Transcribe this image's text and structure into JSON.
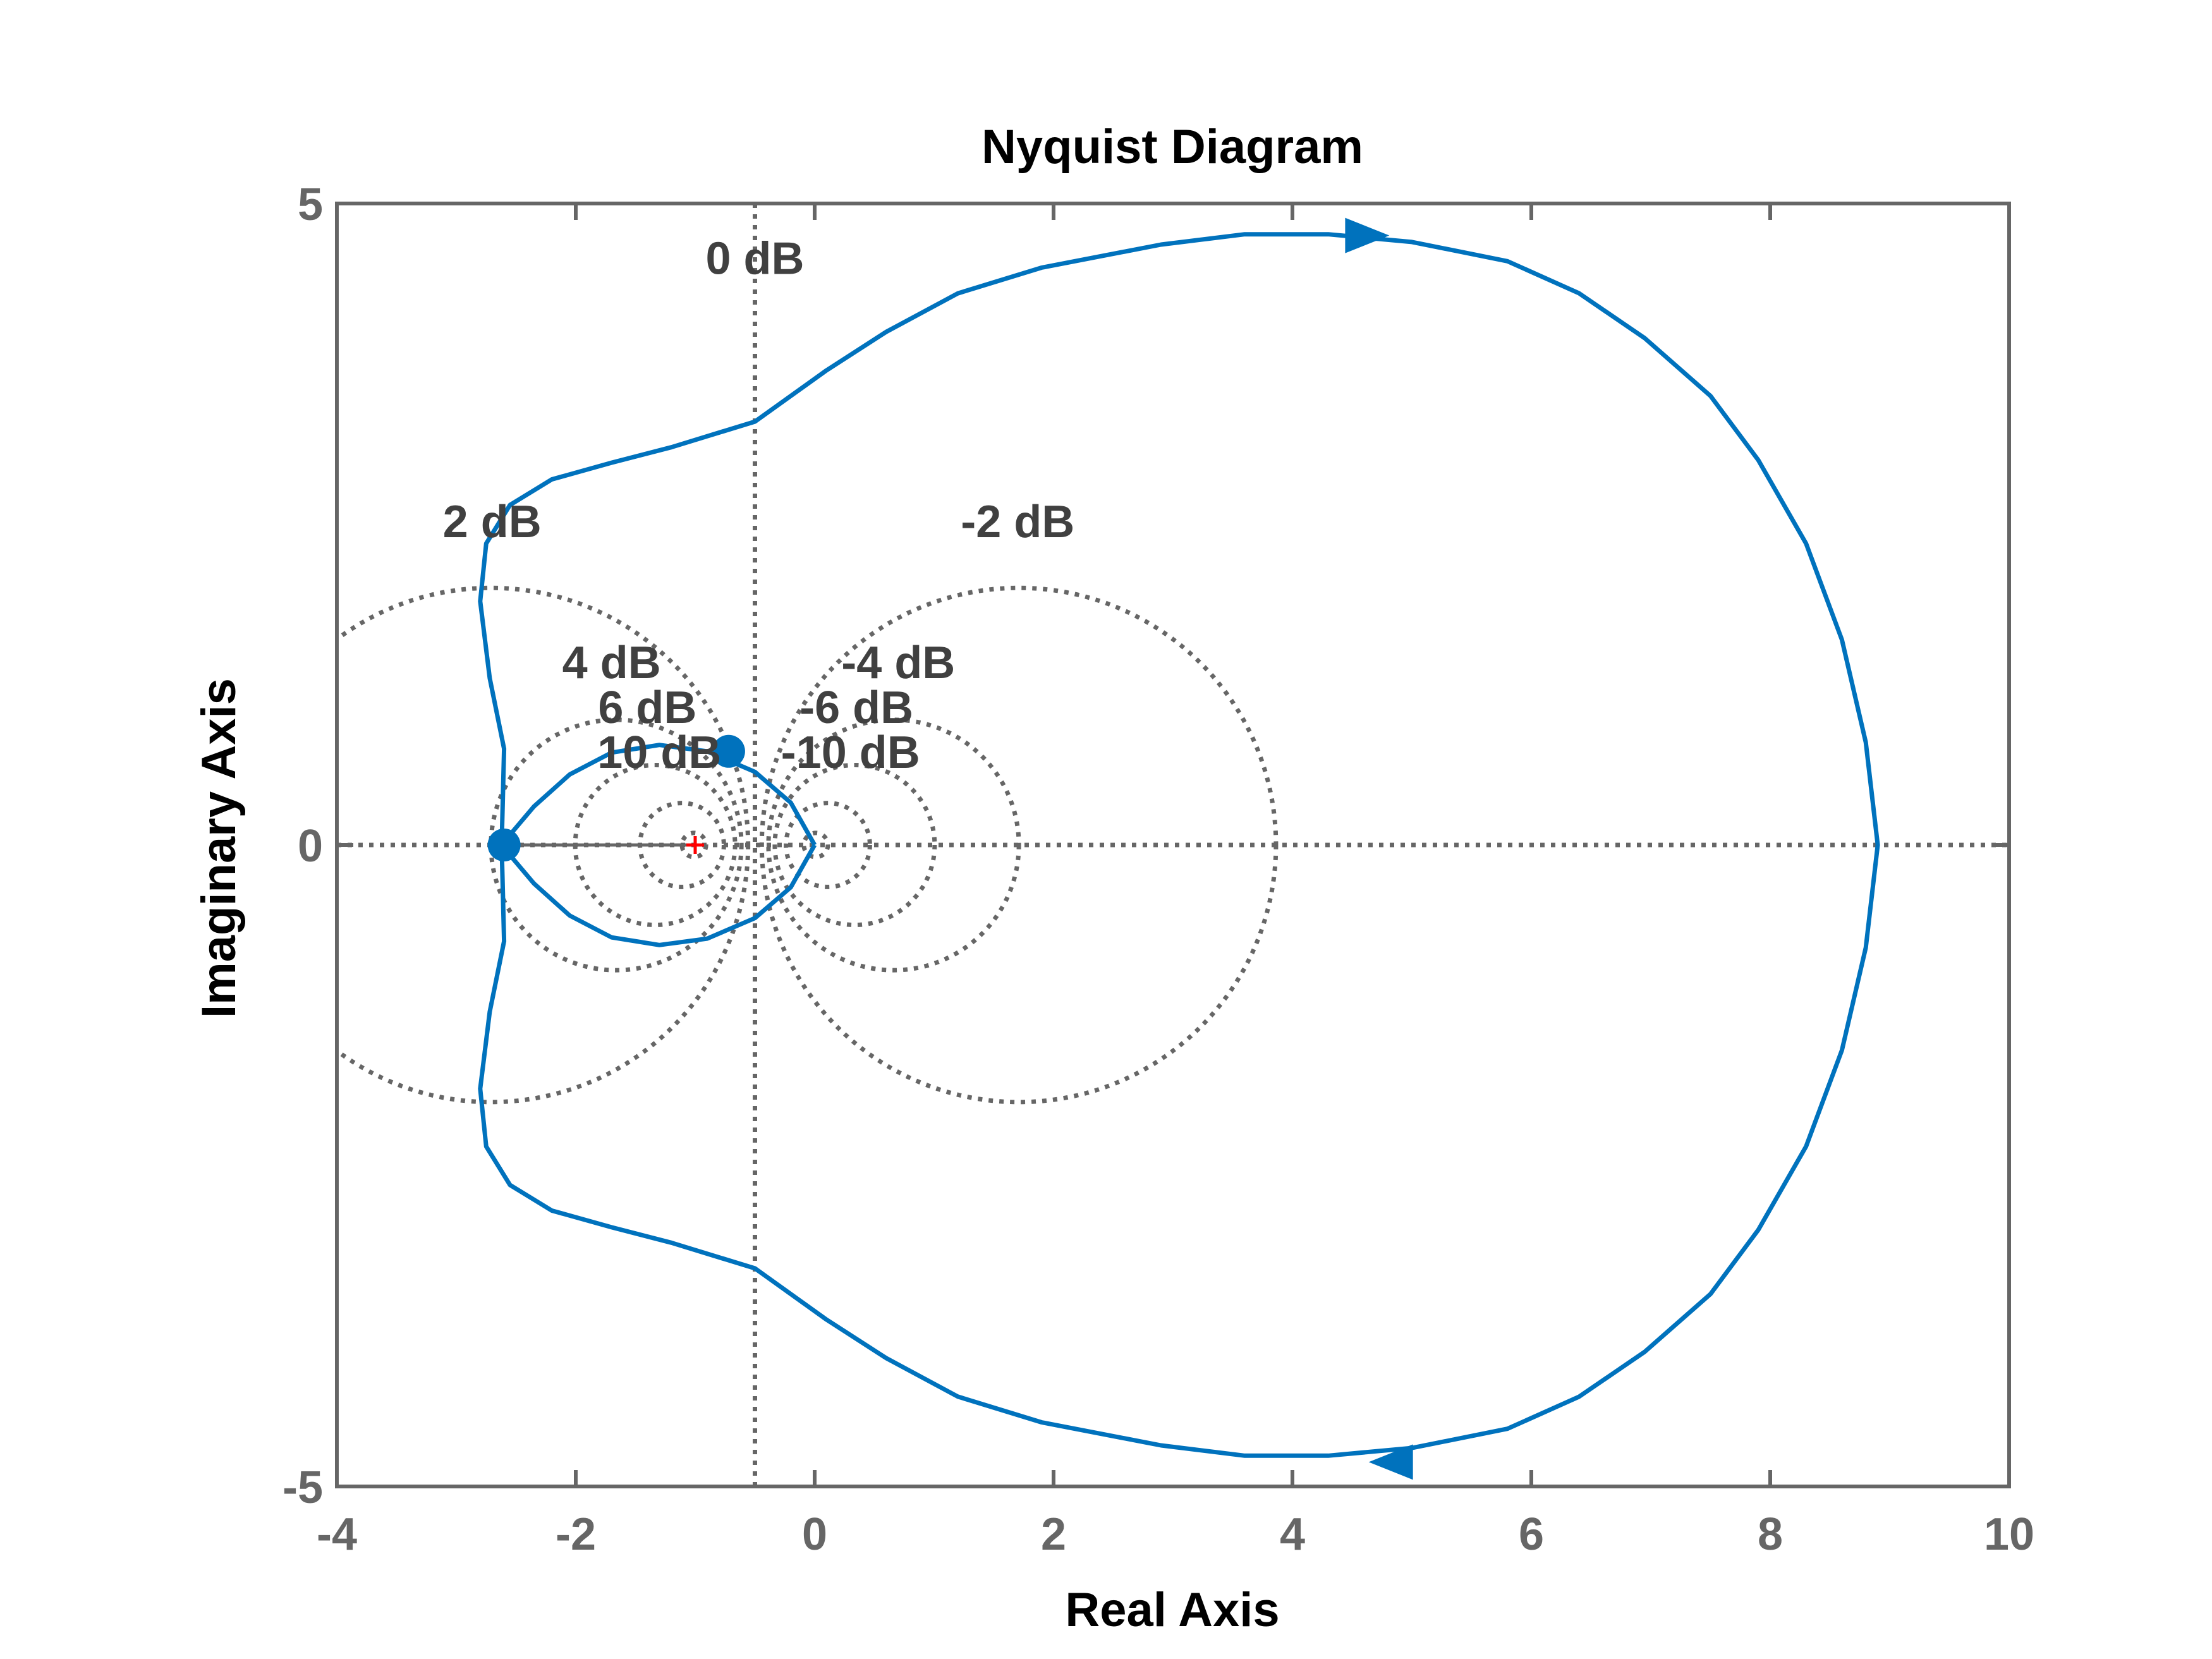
{
  "colors": {
    "curve": "#0072BD",
    "axes": "#666666",
    "grid": "#666666",
    "critical_point": "#FF0000",
    "grid_label": "#404040"
  },
  "chart_data": {
    "type": "line",
    "title": "Nyquist Diagram",
    "xlabel": "Real Axis",
    "ylabel": "Imaginary Axis",
    "xlim": [
      -4,
      10
    ],
    "ylim": [
      -5,
      5
    ],
    "xticks": [
      -4,
      -2,
      0,
      2,
      4,
      6,
      8,
      10
    ],
    "yticks": [
      -5,
      0,
      5
    ],
    "grid": "M-circles",
    "grid_labels": [
      {
        "text": "0 dB",
        "x": -0.5,
        "y": 4.45
      },
      {
        "text": "2 dB",
        "x": -2.7,
        "y": 2.4
      },
      {
        "text": "-2 dB",
        "x": 1.7,
        "y": 2.4
      },
      {
        "text": "4 dB",
        "x": -1.7,
        "y": 1.3
      },
      {
        "text": "-4 dB",
        "x": 0.7,
        "y": 1.3
      },
      {
        "text": "6 dB",
        "x": -1.4,
        "y": 0.95
      },
      {
        "text": "-6 dB",
        "x": 0.35,
        "y": 0.95
      },
      {
        "text": "10 dB",
        "x": -1.3,
        "y": 0.6
      },
      {
        "text": "-10 dB",
        "x": 0.3,
        "y": 0.6
      }
    ],
    "m_circles_db": [
      2,
      -2,
      4,
      -4,
      6,
      -6,
      10,
      -10,
      20,
      -20
    ],
    "series": [
      {
        "x": [
          0,
          -0.2,
          -0.5,
          -0.9,
          -1.3,
          -1.7,
          -2.05,
          -2.35,
          -2.55,
          -2.62,
          -2.6,
          -2.72,
          -2.8,
          -2.75,
          -2.55,
          -2.2,
          -1.7,
          -1.2,
          -0.5,
          0.1,
          0.6,
          1.2,
          1.9,
          2.9,
          3.6,
          4.3,
          5.0,
          5.8,
          6.4,
          6.95,
          7.5,
          7.9,
          8.3,
          8.6,
          8.8,
          8.9
        ],
        "y": [
          0,
          0.33,
          0.57,
          0.73,
          0.78,
          0.72,
          0.55,
          0.3,
          0.08,
          0,
          0.75,
          1.3,
          1.9,
          2.35,
          2.65,
          2.85,
          2.98,
          3.1,
          3.3,
          3.7,
          4.0,
          4.3,
          4.5,
          4.68,
          4.76,
          4.76,
          4.7,
          4.55,
          4.3,
          3.95,
          3.5,
          3.0,
          2.35,
          1.6,
          0.8,
          0
        ]
      }
    ],
    "mirror_about_real_axis": true,
    "markers": [
      {
        "x": -2.6,
        "y": 0
      },
      {
        "x": -0.72,
        "y": 0.73
      }
    ],
    "critical_point": {
      "x": -1,
      "y": 0
    }
  }
}
